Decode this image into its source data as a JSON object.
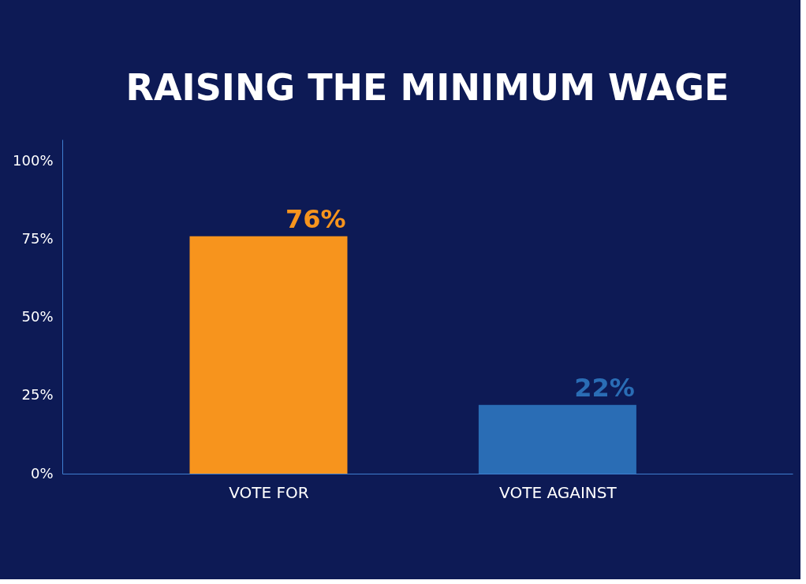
{
  "chart_data": {
    "type": "bar",
    "title": "RAISING THE MINIMUM WAGE",
    "categories": [
      "VOTE FOR",
      "VOTE AGAINST"
    ],
    "values": [
      76,
      22
    ],
    "colors": [
      "#f7941d",
      "#2a6db5"
    ],
    "value_labels": [
      "76%",
      "22%"
    ],
    "ylim": [
      0,
      107
    ],
    "yticks": [
      {
        "value": 0,
        "label": "0%"
      },
      {
        "value": 25,
        "label": "25%"
      },
      {
        "value": 50,
        "label": "50%"
      },
      {
        "value": 75,
        "label": "75%"
      },
      {
        "value": 100,
        "label": "100%"
      }
    ],
    "grid": false
  }
}
